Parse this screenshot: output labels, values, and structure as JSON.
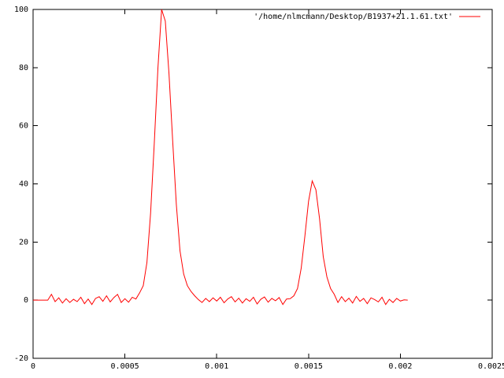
{
  "chart_data": {
    "type": "line",
    "x": [
      0,
      2e-05,
      4e-05,
      6e-05,
      8e-05,
      0.0001,
      0.00012,
      0.00014,
      0.00016,
      0.00018,
      0.0002,
      0.00022,
      0.00024,
      0.00026,
      0.00028,
      0.0003,
      0.00032,
      0.00034,
      0.00036,
      0.00038,
      0.0004,
      0.00042,
      0.00044,
      0.00046,
      0.00048,
      0.0005,
      0.00052,
      0.00054,
      0.00056,
      0.00058,
      0.0006,
      0.00062,
      0.00064,
      0.00066,
      0.00068,
      0.0007,
      0.00072,
      0.00074,
      0.00076,
      0.00078,
      0.0008,
      0.00082,
      0.00084,
      0.00086,
      0.00088,
      0.0009,
      0.00092,
      0.00094,
      0.00096,
      0.00098,
      0.001,
      0.00102,
      0.00104,
      0.00106,
      0.00108,
      0.0011,
      0.00112,
      0.00114,
      0.00116,
      0.00118,
      0.0012,
      0.00122,
      0.00124,
      0.00126,
      0.00128,
      0.0013,
      0.00132,
      0.00134,
      0.00136,
      0.00138,
      0.0014,
      0.00142,
      0.00144,
      0.00146,
      0.00148,
      0.0015,
      0.00152,
      0.00154,
      0.00156,
      0.00158,
      0.0016,
      0.00162,
      0.00164,
      0.00166,
      0.00168,
      0.0017,
      0.00172,
      0.00174,
      0.00176,
      0.00178,
      0.0018,
      0.00182,
      0.00184,
      0.00186,
      0.00188,
      0.0019,
      0.00192,
      0.00194,
      0.00196,
      0.00198,
      0.002,
      0.00202,
      0.00204
    ],
    "series": [
      {
        "name": "'/home/nlmcmann/Desktop/B1937+21.1.61.txt'",
        "color": "#ff0000",
        "values": [
          0,
          0,
          0,
          0,
          0,
          2,
          -0.5,
          0.8,
          -1,
          0.5,
          -0.8,
          0.3,
          -0.5,
          1,
          -1.2,
          0.4,
          -1.5,
          0.6,
          1.2,
          -0.4,
          1.5,
          -0.6,
          0.9,
          2,
          -0.8,
          0.5,
          -0.7,
          1,
          0.4,
          2.5,
          5,
          13,
          30,
          54,
          80,
          100,
          96,
          78,
          55,
          33,
          17,
          9,
          5,
          3,
          1.5,
          0.2,
          -0.8,
          0.6,
          -0.5,
          0.8,
          -0.3,
          1,
          -0.9,
          0.4,
          1.2,
          -0.6,
          0.7,
          -1,
          0.5,
          -0.4,
          1,
          -1.3,
          0.3,
          1.1,
          -0.7,
          0.6,
          -0.2,
          0.9,
          -1.5,
          0.4,
          0.5,
          1.5,
          4,
          11,
          22,
          34,
          41,
          38,
          28,
          15,
          8,
          4,
          2,
          -0.8,
          1.2,
          -0.5,
          0.7,
          -1,
          1.3,
          -0.4,
          0.6,
          -1.2,
          0.8,
          0.2,
          -0.6,
          1,
          -1.5,
          0.3,
          -0.8,
          0.6,
          -0.3,
          0.1,
          0
        ]
      }
    ],
    "xlim": [
      0,
      0.0025
    ],
    "xticks": [
      0,
      0.0005,
      0.001,
      0.0015,
      0.002,
      0.0025
    ],
    "ylim": [
      -20,
      100
    ],
    "yticks": [
      -20,
      0,
      20,
      40,
      60,
      80,
      100
    ],
    "grid": false,
    "legend": "top-right"
  }
}
